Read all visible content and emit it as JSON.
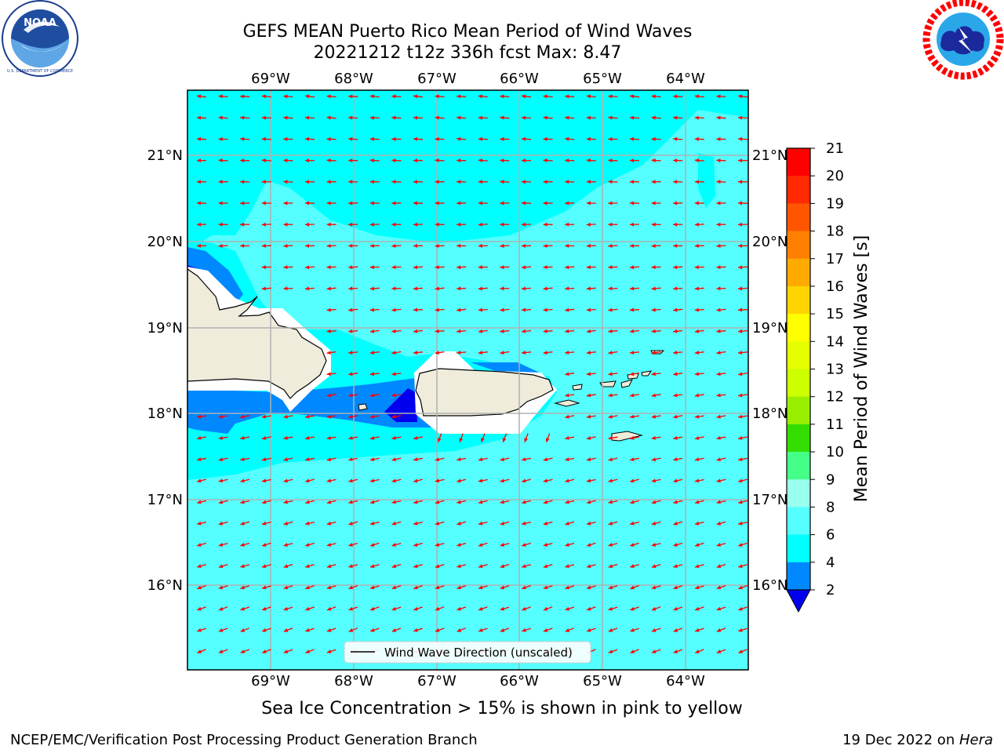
{
  "title": {
    "line1": "GEFS MEAN Puerto Rico Mean Period of Wind Waves",
    "line2": "20221212 t12z 336h fcst   Max: 8.47"
  },
  "logos": {
    "left": {
      "name": "noaa-logo",
      "text": "NOAA",
      "ring_text": "NATIONAL OCEANIC AND ATMOSPHERIC ADMINISTRATION · U.S. DEPARTMENT OF COMMERCE"
    },
    "right": {
      "name": "nws-logo",
      "ring_text": "NATIONAL WEATHER SERVICE"
    }
  },
  "map": {
    "lon_labels": [
      "69°W",
      "68°W",
      "67°W",
      "66°W",
      "65°W",
      "64°W"
    ],
    "lat_labels": [
      "21°N",
      "20°N",
      "19°N",
      "18°N",
      "17°N",
      "16°N"
    ],
    "lon_values": [
      -69,
      -68,
      -67,
      -66,
      -65,
      -64
    ],
    "lat_values": [
      21,
      20,
      19,
      18,
      17,
      16
    ],
    "lon_range": [
      -70.0,
      -63.25
    ],
    "lat_range": [
      15.0,
      21.75
    ],
    "legend_label": "Wind Wave Direction (unscaled)",
    "arrow_color": "#ff0000",
    "land_color": "#efecdc",
    "grid": true
  },
  "colorbar": {
    "label": "Mean Period of Wind Waves [s]",
    "ticks": [
      "21",
      "20",
      "19",
      "18",
      "17",
      "16",
      "15",
      "14",
      "13",
      "12",
      "11",
      "10",
      "9",
      "8",
      "6",
      "4",
      "2"
    ],
    "colors": [
      "#ff0000",
      "#ff2a00",
      "#ff5500",
      "#ff8000",
      "#ffaa00",
      "#ffd400",
      "#ffff00",
      "#e6ff00",
      "#ccff00",
      "#99ee00",
      "#33dd00",
      "#00ee00",
      "#44ff88",
      "#99ffee",
      "#55ffff",
      "#00ffff",
      "#0088ff",
      "#0000ee"
    ],
    "extend_min_color": "#0000ee"
  },
  "sea_ice_note": "Sea Ice Concentration > 15% is shown in pink to yellow",
  "footer": {
    "left": "NCEP/EMC/Verification Post Processing Product Generation Branch",
    "right_prefix": "19 Dec 2022 on ",
    "right_host": "Hera"
  }
}
